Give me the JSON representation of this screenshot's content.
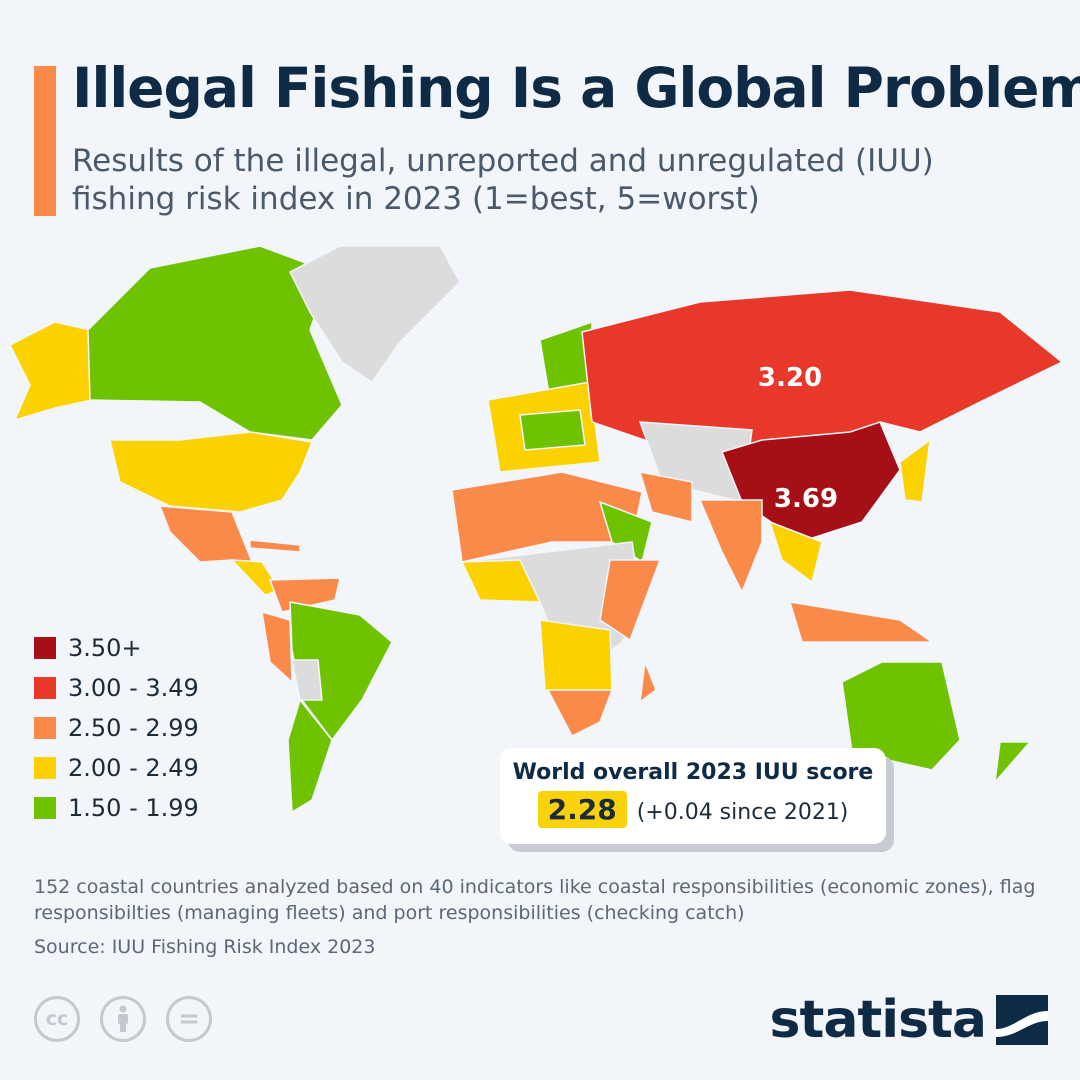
{
  "header": {
    "title": "Illegal Fishing Is a Global Problem",
    "subtitle": "Results of the illegal, unreported and unregulated (IUU) fishing risk index in 2023 (1=best, 5=worst)"
  },
  "map": {
    "labels": [
      {
        "country": "Russia",
        "value": "3.20"
      },
      {
        "country": "China",
        "value": "3.69"
      }
    ],
    "no_data_color": "#dcdcdc"
  },
  "legend": {
    "items": [
      {
        "label": "3.50+",
        "color": "#a50f15"
      },
      {
        "label": "3.00 - 3.49",
        "color": "#e8382a"
      },
      {
        "label": "2.50 - 2.99",
        "color": "#f98a4a"
      },
      {
        "label": "2.00 - 2.49",
        "color": "#fbd200"
      },
      {
        "label": "1.50 - 1.99",
        "color": "#6fc200"
      }
    ]
  },
  "score_box": {
    "title": "World overall 2023 IUU score",
    "value": "2.28",
    "change": "(+0.04 since 2021)"
  },
  "footer": {
    "note": "152 coastal countries analyzed based on 40 indicators like coastal responsibilities (economic zones), flag responsibilties (managing fleets) and port responsibilities (checking catch)",
    "source": "Source: IUU Fishing Risk Index 2023",
    "license_icons": [
      "cc-icon",
      "attribution-icon",
      "no-derivatives-icon"
    ],
    "cc_text": "cc",
    "nd_text": "=",
    "brand": "statista"
  }
}
